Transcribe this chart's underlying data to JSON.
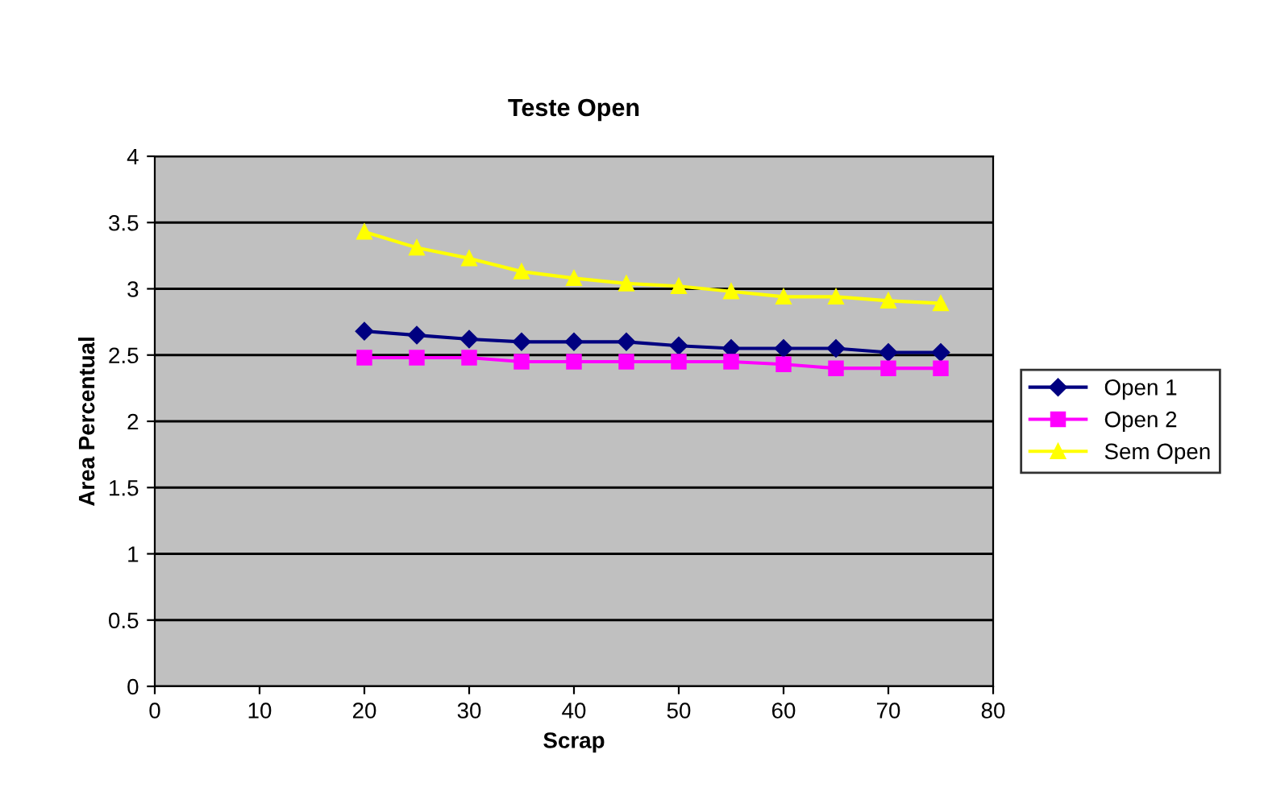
{
  "chart_data": {
    "type": "line",
    "title": "Teste Open",
    "xlabel": "Scrap",
    "ylabel": "Area Percentual",
    "x": [
      20,
      25,
      30,
      35,
      40,
      45,
      50,
      55,
      60,
      65,
      70,
      75
    ],
    "series": [
      {
        "name": "Open 1",
        "color": "#000080",
        "marker": "diamond",
        "values": [
          2.68,
          2.65,
          2.62,
          2.6,
          2.6,
          2.6,
          2.57,
          2.55,
          2.55,
          2.55,
          2.52,
          2.52
        ]
      },
      {
        "name": "Open 2",
        "color": "#ff00ff",
        "marker": "square",
        "values": [
          2.48,
          2.48,
          2.48,
          2.45,
          2.45,
          2.45,
          2.45,
          2.45,
          2.43,
          2.4,
          2.4,
          2.4
        ]
      },
      {
        "name": "Sem Open",
        "color": "#ffff00",
        "marker": "triangle",
        "values": [
          3.43,
          3.31,
          3.23,
          3.13,
          3.08,
          3.04,
          3.02,
          2.98,
          2.94,
          2.94,
          2.91,
          2.89
        ]
      }
    ],
    "xlim": [
      0,
      80
    ],
    "xticks": [
      0,
      10,
      20,
      30,
      40,
      50,
      60,
      70,
      80
    ],
    "ylim": [
      0,
      4
    ],
    "yticks": [
      0,
      0.5,
      1,
      1.5,
      2,
      2.5,
      3,
      3.5,
      4
    ],
    "grid": "y",
    "legend": "right"
  }
}
